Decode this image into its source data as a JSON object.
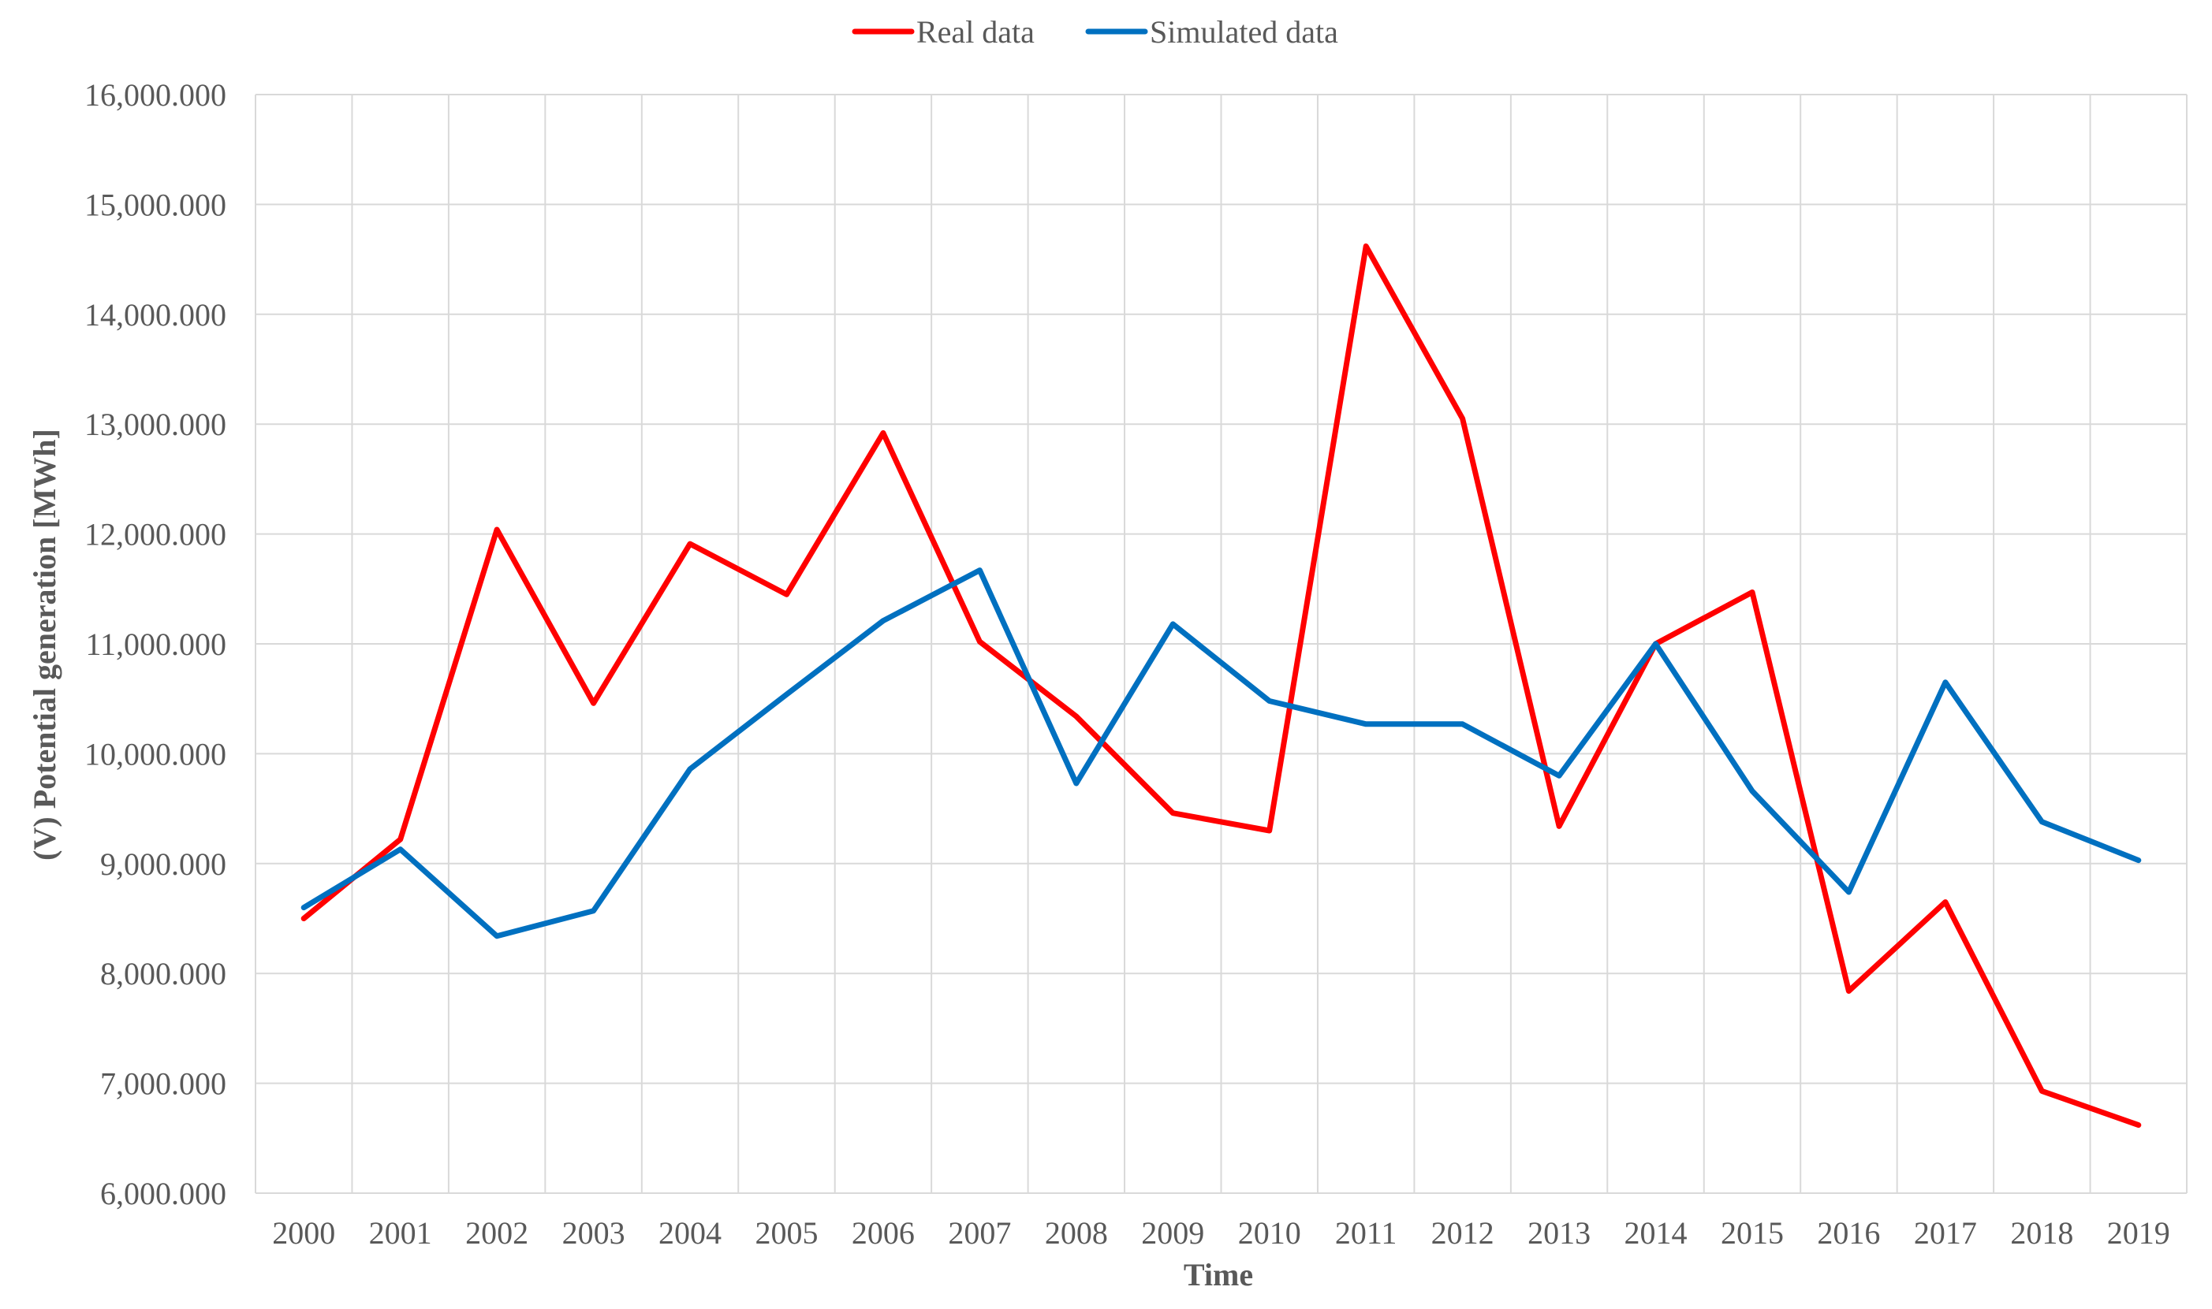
{
  "chart_data": {
    "type": "line",
    "title": "",
    "xlabel": "Time",
    "ylabel": "(V) Potential  generation [MWh]",
    "ylim": [
      6000000,
      16000000
    ],
    "y_ticks": [
      6000000,
      7000000,
      8000000,
      9000000,
      10000000,
      11000000,
      12000000,
      13000000,
      14000000,
      15000000,
      16000000
    ],
    "y_tick_labels": [
      "6,000.000",
      "7,000.000",
      "8,000.000",
      "9,000.000",
      "10,000.000",
      "11,000.000",
      "12,000.000",
      "13,000.000",
      "14,000.000",
      "15,000.000",
      "16,000.000"
    ],
    "categories": [
      "2000",
      "2001",
      "2002",
      "2003",
      "2004",
      "2005",
      "2006",
      "2007",
      "2008",
      "2009",
      "2010",
      "2011",
      "2012",
      "2013",
      "2014",
      "2015",
      "2016",
      "2017",
      "2018",
      "2019"
    ],
    "grid": true,
    "legend_position": "top-center",
    "series": [
      {
        "name": "Real data",
        "color": "#ff0000",
        "values": [
          8500000,
          9220000,
          12040000,
          10460000,
          11910000,
          11450000,
          12920000,
          11020000,
          10340000,
          9460000,
          9300000,
          14620000,
          13050000,
          9340000,
          11000000,
          11470000,
          7840000,
          8650000,
          6930000,
          6620000
        ]
      },
      {
        "name": "Simulated data",
        "color": "#0070c0",
        "values": [
          8600000,
          9130000,
          8340000,
          8570000,
          9860000,
          10540000,
          11210000,
          11670000,
          9730000,
          11180000,
          10480000,
          10270000,
          10270000,
          9800000,
          11000000,
          9660000,
          8740000,
          10650000,
          9380000,
          9030000
        ]
      }
    ]
  }
}
